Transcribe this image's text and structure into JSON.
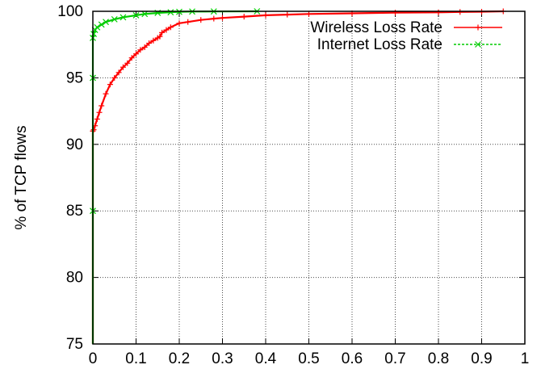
{
  "chart_data": {
    "type": "line",
    "title": "",
    "xlabel": "",
    "ylabel": "% of TCP flows",
    "xlim": [
      0,
      1
    ],
    "ylim": [
      75,
      100
    ],
    "x_ticks": [
      "0",
      "0.1",
      "0.2",
      "0.3",
      "0.4",
      "0.5",
      "0.6",
      "0.7",
      "0.8",
      "0.9",
      "1"
    ],
    "y_ticks": [
      "75",
      "80",
      "85",
      "90",
      "95",
      "100"
    ],
    "grid": true,
    "legend_position": "top-right",
    "series": [
      {
        "name": "Wireless Loss Rate",
        "color": "#ff0000",
        "marker": "plus",
        "x": [
          0.0,
          0.0,
          0.002,
          0.005,
          0.01,
          0.015,
          0.02,
          0.03,
          0.04,
          0.05,
          0.06,
          0.07,
          0.08,
          0.09,
          0.1,
          0.11,
          0.12,
          0.13,
          0.14,
          0.15,
          0.155,
          0.16,
          0.17,
          0.18,
          0.2,
          0.22,
          0.25,
          0.28,
          0.3,
          0.35,
          0.4,
          0.45,
          0.5,
          0.6,
          0.7,
          0.8,
          0.85,
          0.9,
          0.95
        ],
        "y": [
          75.0,
          91.0,
          91.1,
          91.4,
          91.9,
          92.4,
          92.9,
          93.8,
          94.5,
          95.0,
          95.4,
          95.8,
          96.1,
          96.5,
          96.8,
          97.1,
          97.3,
          97.6,
          97.8,
          98.0,
          98.1,
          98.4,
          98.6,
          98.8,
          99.1,
          99.2,
          99.35,
          99.45,
          99.5,
          99.6,
          99.7,
          99.75,
          99.8,
          99.85,
          99.9,
          99.92,
          99.95,
          99.97,
          100.0
        ]
      },
      {
        "name": "Internet Loss Rate",
        "color": "#00cc00",
        "marker": "x",
        "x": [
          0.0,
          0.0,
          0.0,
          0.0,
          0.002,
          0.005,
          0.01,
          0.02,
          0.03,
          0.05,
          0.07,
          0.1,
          0.12,
          0.15,
          0.18,
          0.2,
          0.23,
          0.28,
          0.38
        ],
        "y": [
          75.0,
          85.0,
          95.0,
          98.0,
          98.3,
          98.6,
          98.8,
          99.0,
          99.2,
          99.4,
          99.55,
          99.7,
          99.8,
          99.88,
          99.93,
          99.96,
          99.98,
          99.99,
          100.0
        ]
      }
    ]
  }
}
